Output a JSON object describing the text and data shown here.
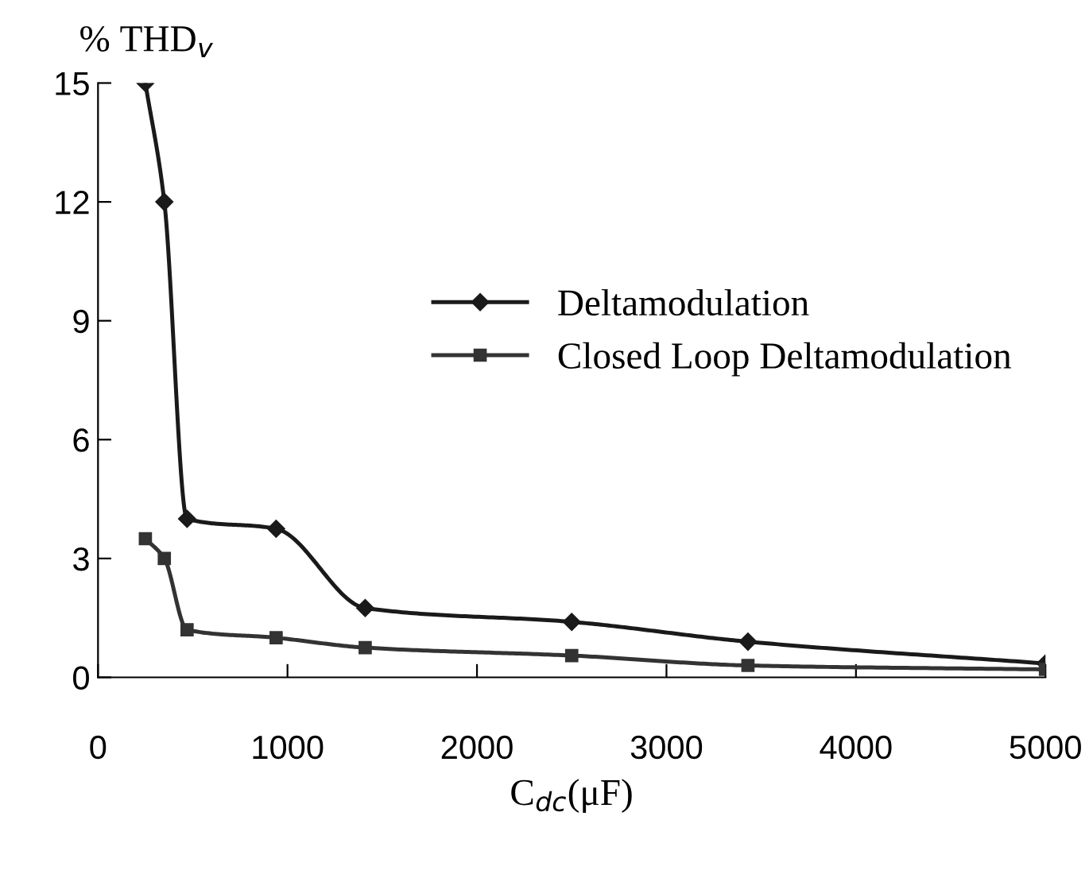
{
  "chart_data": {
    "type": "line",
    "xlabel": "C$_{dc}$(μF)",
    "ylabel": "% THD$_{v}$",
    "xlim": [
      0,
      5000
    ],
    "xticks": [
      0,
      1000,
      2000,
      3000,
      4000,
      5000
    ],
    "ylim": [
      0,
      15
    ],
    "yticks": [
      0,
      3,
      6,
      9,
      12,
      15
    ],
    "grid": false,
    "legend": "right",
    "series": [
      {
        "name": "Deltamodulation",
        "color": "#1a1a1a",
        "marker": "diamond",
        "x": [
          250,
          350,
          470,
          940,
          1410,
          2500,
          3430,
          5000
        ],
        "values": [
          15,
          12,
          4.0,
          3.75,
          1.75,
          1.4,
          0.9,
          0.35
        ]
      },
      {
        "name": "Closed Loop Deltamodulation",
        "color": "#333333",
        "marker": "square",
        "x": [
          250,
          350,
          470,
          940,
          1410,
          2500,
          3430,
          5000
        ],
        "values": [
          3.5,
          3.0,
          1.2,
          1.0,
          0.75,
          0.55,
          0.3,
          0.2
        ]
      }
    ]
  }
}
